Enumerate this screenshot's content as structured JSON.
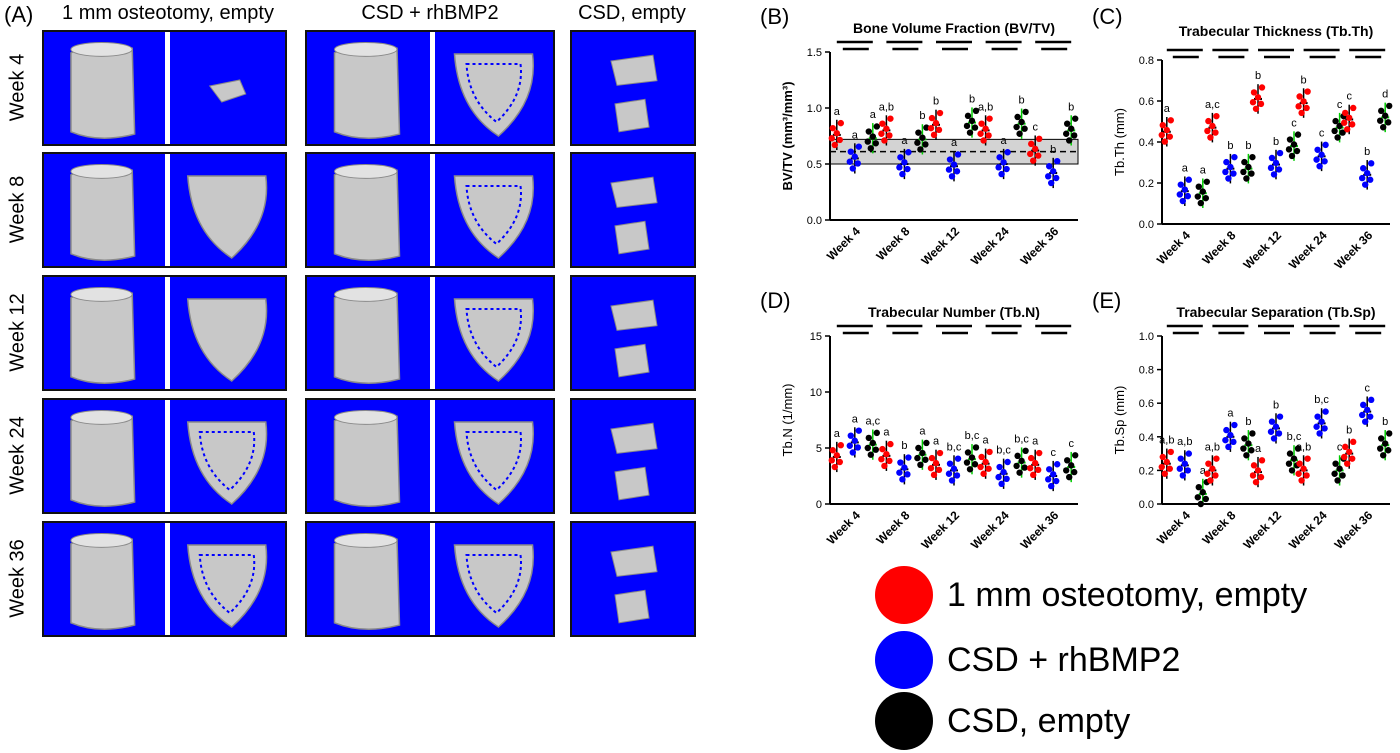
{
  "panel_a": {
    "letter": "(A)",
    "columns": [
      "1 mm osteotomy, empty",
      "CSD + rhBMP2",
      "CSD, empty"
    ],
    "rows": [
      "Week 4",
      "Week 8",
      "Week 12",
      "Week 24",
      "Week 36"
    ]
  },
  "colors": {
    "tile_background": "#0000ff",
    "bone": "#c8c8c8",
    "group1": "#ff0000",
    "group2": "#0000ff",
    "group3": "#000000",
    "green_bar": "#00cc00"
  },
  "legend": [
    {
      "label": "1 mm osteotomy, empty",
      "color": "#ff0000"
    },
    {
      "label": "CSD + rhBMP2",
      "color": "#0000ff"
    },
    {
      "label": "CSD, empty",
      "color": "#000000"
    }
  ],
  "chart_data": [
    {
      "letter": "(B)",
      "type": "scatter",
      "title": "Bone Volume Fraction (BV/TV)",
      "ylabel": "BV/TV (mm³/mm³)",
      "ylim": [
        0,
        1.5
      ],
      "yticks": [
        "0.0",
        "0.5",
        "1.0",
        "1.5"
      ],
      "categories": [
        "Week 4",
        "Week 8",
        "Week 12",
        "Week 24",
        "Week 36"
      ],
      "band": {
        "low": 0.5,
        "high": 0.72,
        "mid": 0.61
      },
      "series": [
        {
          "name": "1 mm osteotomy, empty",
          "values": [
            0.76,
            0.8,
            0.85,
            0.8,
            0.62
          ]
        },
        {
          "name": "CSD + rhBMP2",
          "values": [
            0.55,
            0.5,
            0.48,
            0.5,
            0.42
          ]
        },
        {
          "name": "CSD, empty",
          "values": [
            0.73,
            0.72,
            0.87,
            0.86,
            0.8
          ]
        }
      ],
      "letters": [
        [
          "a",
          "a",
          "a"
        ],
        [
          "a,b",
          "a",
          "b"
        ],
        [
          "b",
          "a",
          "b"
        ],
        [
          "a,b",
          "a",
          "b"
        ],
        [
          "c",
          "b",
          "b"
        ]
      ]
    },
    {
      "letter": "(C)",
      "type": "scatter",
      "title": "Trabecular Thickness (Tb.Th)",
      "ylabel": "Tb.Th (mm)",
      "ylim": [
        0,
        0.8
      ],
      "yticks": [
        "0.0",
        "0.2",
        "0.4",
        "0.6",
        "0.8"
      ],
      "categories": [
        "Week 4",
        "Week 8",
        "Week 12",
        "Week 24",
        "Week 36"
      ],
      "series": [
        {
          "name": "1 mm osteotomy, empty",
          "values": [
            0.45,
            0.47,
            0.61,
            0.59,
            0.51
          ]
        },
        {
          "name": "CSD + rhBMP2",
          "values": [
            0.16,
            0.27,
            0.29,
            0.33,
            0.24
          ]
        },
        {
          "name": "CSD, empty",
          "values": [
            0.15,
            0.27,
            0.38,
            0.47,
            0.52
          ]
        }
      ],
      "letters": [
        [
          "a",
          "a",
          "a"
        ],
        [
          "a,c",
          "b",
          "b"
        ],
        [
          "b",
          "b",
          "c"
        ],
        [
          "b",
          "c",
          "c"
        ],
        [
          "c",
          "b",
          "d"
        ]
      ]
    },
    {
      "letter": "(D)",
      "type": "scatter",
      "title": "Trabecular Number (Tb.N)",
      "ylabel": "Tb.N (1/mm)",
      "ylim": [
        0,
        15
      ],
      "yticks": [
        "0",
        "5",
        "10",
        "15"
      ],
      "categories": [
        "Week 4",
        "Week 8",
        "Week 12",
        "Week 24",
        "Week 36"
      ],
      "series": [
        {
          "name": "1 mm osteotomy, empty",
          "values": [
            4.2,
            4.3,
            3.5,
            3.6,
            3.5
          ]
        },
        {
          "name": "CSD + rhBMP2",
          "values": [
            5.5,
            3.1,
            3.0,
            2.7,
            2.5
          ]
        },
        {
          "name": "CSD, empty",
          "values": [
            5.3,
            4.4,
            4.0,
            3.7,
            3.3
          ]
        }
      ],
      "letters": [
        [
          "a",
          "a",
          "a,c"
        ],
        [
          "a",
          "b",
          "a"
        ],
        [
          "a",
          "b,c",
          "b,c"
        ],
        [
          "a",
          "b,c",
          "b,c"
        ],
        [
          "a",
          "c",
          "c"
        ]
      ]
    },
    {
      "letter": "(E)",
      "type": "scatter",
      "title": "Trabecular Separation (Tb.Sp)",
      "ylabel": "Tb.Sp (mm)",
      "ylim": [
        0,
        1.0
      ],
      "yticks": [
        "0.0",
        "0.2",
        "0.4",
        "0.6",
        "0.8",
        "1.0"
      ],
      "categories": [
        "Week 4",
        "Week 8",
        "Week 12",
        "Week 24",
        "Week 36"
      ],
      "series": [
        {
          "name": "1 mm osteotomy, empty",
          "values": [
            0.24,
            0.2,
            0.19,
            0.2,
            0.3
          ]
        },
        {
          "name": "CSD + rhBMP2",
          "values": [
            0.23,
            0.4,
            0.45,
            0.48,
            0.55
          ]
        },
        {
          "name": "CSD, empty",
          "values": [
            0.06,
            0.35,
            0.26,
            0.2,
            0.35
          ]
        }
      ],
      "letters": [
        [
          "a,b",
          "a,b",
          "a"
        ],
        [
          "a,b",
          "a",
          "b"
        ],
        [
          "a",
          "b",
          "b,c"
        ],
        [
          "a,b",
          "b,c",
          "c"
        ],
        [
          "b",
          "c",
          "b"
        ]
      ]
    }
  ]
}
